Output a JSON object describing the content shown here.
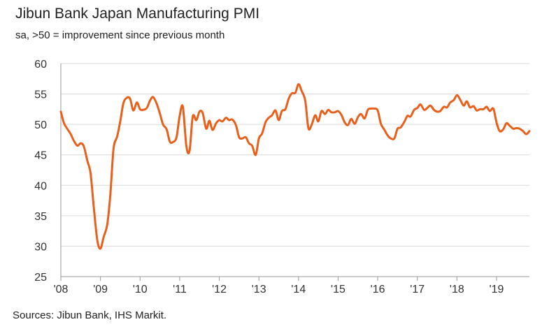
{
  "header": {
    "title": "Jibun Bank Japan Manufacturing PMI",
    "subtitle": "sa, >50 = improvement since previous month"
  },
  "footer": {
    "source": "Sources: Jibun Bank, IHS Markit."
  },
  "colors": {
    "line": "#e8601c",
    "grid": "#d9d9d9",
    "axis": "#999999"
  },
  "chart_data": {
    "type": "line",
    "title": "Jibun Bank Japan Manufacturing PMI",
    "subtitle": "sa, >50 = improvement since previous month",
    "xlabel": "",
    "ylabel": "",
    "ylim": [
      25,
      60
    ],
    "yticks": [
      25,
      30,
      35,
      40,
      45,
      50,
      55,
      60
    ],
    "xlim": [
      2008.0,
      2019.83
    ],
    "xticks": [
      {
        "value": 2008,
        "label": "'08"
      },
      {
        "value": 2009,
        "label": "'09"
      },
      {
        "value": 2010,
        "label": "'10"
      },
      {
        "value": 2011,
        "label": "'11"
      },
      {
        "value": 2012,
        "label": "'12"
      },
      {
        "value": 2013,
        "label": "'13"
      },
      {
        "value": 2014,
        "label": "'14"
      },
      {
        "value": 2015,
        "label": "'15"
      },
      {
        "value": 2016,
        "label": "'16"
      },
      {
        "value": 2017,
        "label": "'17"
      },
      {
        "value": 2018,
        "label": "'18"
      },
      {
        "value": 2019,
        "label": "'19"
      }
    ],
    "grid": true,
    "series": [
      {
        "name": "Manufacturing PMI",
        "x": [
          2008.0,
          2008.08,
          2008.17,
          2008.25,
          2008.33,
          2008.42,
          2008.5,
          2008.58,
          2008.67,
          2008.75,
          2008.83,
          2008.92,
          2009.0,
          2009.08,
          2009.17,
          2009.25,
          2009.33,
          2009.42,
          2009.5,
          2009.58,
          2009.67,
          2009.75,
          2009.83,
          2009.92,
          2010.0,
          2010.08,
          2010.17,
          2010.25,
          2010.33,
          2010.42,
          2010.5,
          2010.58,
          2010.67,
          2010.75,
          2010.83,
          2010.92,
          2011.0,
          2011.08,
          2011.17,
          2011.25,
          2011.33,
          2011.42,
          2011.5,
          2011.58,
          2011.67,
          2011.75,
          2011.83,
          2011.92,
          2012.0,
          2012.08,
          2012.17,
          2012.25,
          2012.33,
          2012.42,
          2012.5,
          2012.58,
          2012.67,
          2012.75,
          2012.83,
          2012.92,
          2013.0,
          2013.08,
          2013.17,
          2013.25,
          2013.33,
          2013.42,
          2013.5,
          2013.58,
          2013.67,
          2013.75,
          2013.83,
          2013.92,
          2014.0,
          2014.08,
          2014.17,
          2014.25,
          2014.33,
          2014.42,
          2014.5,
          2014.58,
          2014.67,
          2014.75,
          2014.83,
          2014.92,
          2015.0,
          2015.08,
          2015.17,
          2015.25,
          2015.33,
          2015.42,
          2015.5,
          2015.58,
          2015.67,
          2015.75,
          2015.83,
          2015.92,
          2016.0,
          2016.08,
          2016.17,
          2016.25,
          2016.33,
          2016.42,
          2016.5,
          2016.58,
          2016.67,
          2016.75,
          2016.83,
          2016.92,
          2017.0,
          2017.08,
          2017.17,
          2017.25,
          2017.33,
          2017.42,
          2017.5,
          2017.58,
          2017.67,
          2017.75,
          2017.83,
          2017.92,
          2018.0,
          2018.08,
          2018.17,
          2018.25,
          2018.33,
          2018.42,
          2018.5,
          2018.58,
          2018.67,
          2018.75,
          2018.83,
          2018.92,
          2019.0,
          2019.08,
          2019.17,
          2019.25,
          2019.33,
          2019.42,
          2019.5,
          2019.58,
          2019.67,
          2019.75,
          2019.83
        ],
        "values": [
          52.1,
          50.2,
          49.2,
          48.4,
          47.3,
          46.5,
          46.9,
          46.4,
          44.0,
          42.0,
          36.5,
          31.0,
          29.6,
          31.5,
          33.5,
          38.5,
          46.0,
          48.0,
          50.5,
          53.5,
          54.4,
          54.2,
          52.3,
          53.6,
          52.5,
          52.4,
          52.7,
          53.9,
          54.5,
          53.4,
          51.8,
          50.0,
          49.2,
          47.2,
          47.1,
          47.9,
          51.4,
          52.9,
          46.4,
          45.7,
          51.3,
          50.7,
          52.1,
          51.9,
          49.3,
          50.6,
          49.1,
          50.2,
          50.7,
          50.5,
          51.1,
          50.7,
          50.8,
          49.9,
          47.9,
          47.7,
          47.9,
          46.9,
          46.5,
          45.0,
          47.7,
          48.5,
          50.4,
          51.1,
          51.5,
          52.3,
          50.7,
          52.2,
          52.5,
          54.2,
          55.1,
          55.2,
          56.6,
          55.5,
          53.9,
          49.4,
          49.9,
          51.5,
          50.5,
          52.2,
          51.7,
          52.4,
          52.0,
          52.0,
          52.2,
          51.6,
          50.3,
          49.9,
          50.9,
          50.1,
          51.2,
          51.7,
          51.0,
          52.4,
          52.6,
          52.6,
          52.3,
          50.1,
          49.1,
          48.2,
          47.7,
          47.7,
          49.3,
          49.5,
          50.4,
          51.4,
          51.3,
          52.4,
          52.7,
          53.3,
          52.4,
          52.7,
          53.1,
          52.4,
          52.1,
          52.2,
          52.9,
          52.8,
          53.6,
          54.0,
          54.8,
          54.1,
          53.1,
          53.8,
          52.8,
          53.0,
          52.3,
          52.5,
          52.5,
          52.9,
          52.2,
          52.6,
          50.3,
          48.9,
          49.2,
          50.2,
          49.8,
          49.3,
          49.4,
          49.3,
          48.9,
          48.4,
          48.9
        ]
      }
    ]
  }
}
